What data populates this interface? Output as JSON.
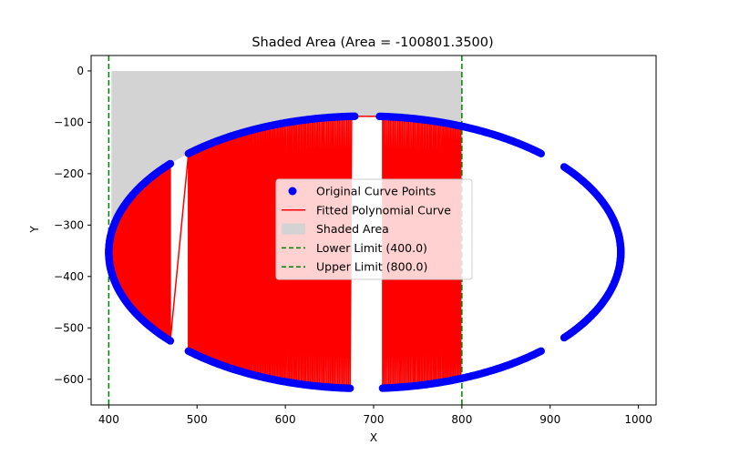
{
  "chart_data": {
    "type": "scatter",
    "title": "Shaded Area (Area = -100801.3500)",
    "xlabel": "X",
    "ylabel": "Y",
    "xlim": [
      380,
      1020
    ],
    "ylim": [
      -650,
      30
    ],
    "xticks": [
      400,
      500,
      600,
      700,
      800,
      900,
      1000
    ],
    "yticks": [
      0,
      -100,
      -200,
      -300,
      -400,
      -500,
      -600
    ],
    "xtick_labels": [
      "400",
      "500",
      "600",
      "700",
      "800",
      "900",
      "1000"
    ],
    "ytick_labels": [
      "0",
      "−100",
      "−200",
      "−300",
      "−400",
      "−500",
      "−600"
    ],
    "grid": false,
    "legend_position": "center",
    "ellipse": {
      "cx": 690,
      "cy": -353,
      "rx": 290,
      "ry": 265
    },
    "gaps_upper_x": [
      [
        470,
        490
      ],
      [
        680,
        705
      ],
      [
        890,
        915
      ]
    ],
    "gaps_lower_x": [
      [
        470,
        490
      ],
      [
        675,
        710
      ],
      [
        890,
        915
      ]
    ],
    "fill": {
      "x_start": 403,
      "x_end": 800,
      "y_top": 0,
      "y_bottom_at_start": -290,
      "color": "#d3d3d3"
    },
    "limits": {
      "lower": 400.0,
      "upper": 800.0,
      "color": "#008000"
    },
    "series": [
      {
        "name": "Original Curve Points",
        "kind": "points",
        "color": "#0000ff"
      },
      {
        "name": "Fitted Polynomial Curve",
        "kind": "line",
        "color": "#ff0000"
      },
      {
        "name": "Shaded Area",
        "kind": "area",
        "color": "#d3d3d3"
      },
      {
        "name": "Lower Limit (400.0)",
        "kind": "vline",
        "x": 400.0,
        "color": "#008000"
      },
      {
        "name": "Upper Limit (800.0)",
        "kind": "vline",
        "x": 800.0,
        "color": "#008000"
      }
    ]
  }
}
